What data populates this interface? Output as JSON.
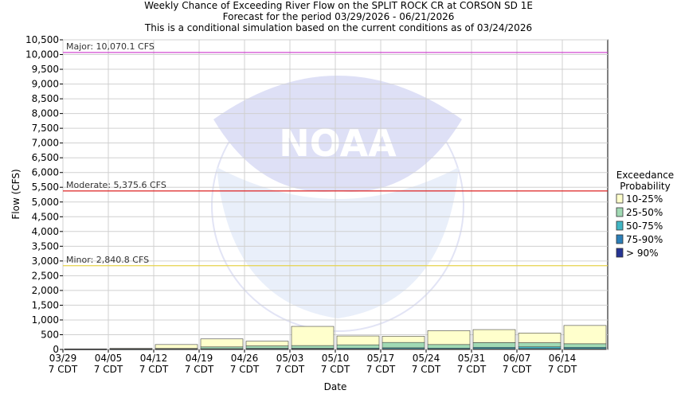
{
  "chart_data": {
    "type": "bar",
    "title": "Weekly Chance of Exceeding River Flow on the SPLIT ROCK CR at CORSON SD 1E",
    "subtitle_lines": [
      "Forecast for the period 03/29/2026 - 06/21/2026",
      "This is a conditional simulation based on the current conditions as of 03/24/2026"
    ],
    "xlabel": "Date",
    "ylabel": "Flow (CFS)",
    "ylim": [
      0,
      10500
    ],
    "yticks": [
      0,
      500,
      1000,
      1500,
      2000,
      2500,
      3000,
      3500,
      4000,
      4500,
      5000,
      5500,
      6000,
      6500,
      7000,
      7500,
      8000,
      8500,
      9000,
      9500,
      10000,
      10500
    ],
    "ytick_labels": [
      "0",
      "500",
      "1,000",
      "1,500",
      "2,000",
      "2,500",
      "3,000",
      "3,500",
      "4,000",
      "4,500",
      "5,000",
      "5,500",
      "6,000",
      "6,500",
      "7,000",
      "7,500",
      "8,000",
      "8,500",
      "9,000",
      "9,500",
      "10,000",
      "10,500"
    ],
    "categories": [
      "03/29",
      "04/05",
      "04/12",
      "04/19",
      "04/26",
      "05/03",
      "05/10",
      "05/17",
      "05/24",
      "05/31",
      "06/07",
      "06/14"
    ],
    "category_sublabel": "7 CDT",
    "grid": true,
    "legend": {
      "title_lines": [
        "Exceedance",
        "Probability"
      ],
      "placement": "right",
      "entries": [
        {
          "label": "10-25%",
          "color": "#ffffcc"
        },
        {
          "label": "25-50%",
          "color": "#a1dab4"
        },
        {
          "label": "50-75%",
          "color": "#41b6c4"
        },
        {
          "label": "75-90%",
          "color": "#2c7fb8"
        },
        {
          "label": "> 90%",
          "color": "#253494"
        }
      ]
    },
    "series": [
      {
        "name": "10-25%",
        "values": [
          10,
          20,
          130,
          270,
          160,
          650,
          300,
          210,
          470,
          440,
          330,
          620
        ]
      },
      {
        "name": "25-50%",
        "values": [
          5,
          10,
          20,
          60,
          80,
          90,
          110,
          180,
          120,
          160,
          140,
          120
        ]
      },
      {
        "name": "50-75%",
        "values": [
          3,
          5,
          8,
          15,
          25,
          25,
          30,
          35,
          30,
          45,
          60,
          45
        ]
      },
      {
        "name": "75-90%",
        "values": [
          2,
          3,
          5,
          8,
          10,
          12,
          12,
          15,
          12,
          20,
          20,
          20
        ]
      },
      {
        "name": "> 90%",
        "values": [
          1,
          2,
          3,
          4,
          5,
          5,
          5,
          8,
          5,
          8,
          8,
          8
        ]
      }
    ],
    "thresholds": [
      {
        "label": "Major: 10,070.1 CFS",
        "value": 10070.1,
        "color": "#cc33cc"
      },
      {
        "label": "Moderate: 5,375.6 CFS",
        "value": 5375.6,
        "color": "#dd2222"
      },
      {
        "label": "Minor: 2,840.8 CFS",
        "value": 2840.8,
        "color": "#e6d34c"
      }
    ],
    "watermark_text": "NOAA"
  }
}
